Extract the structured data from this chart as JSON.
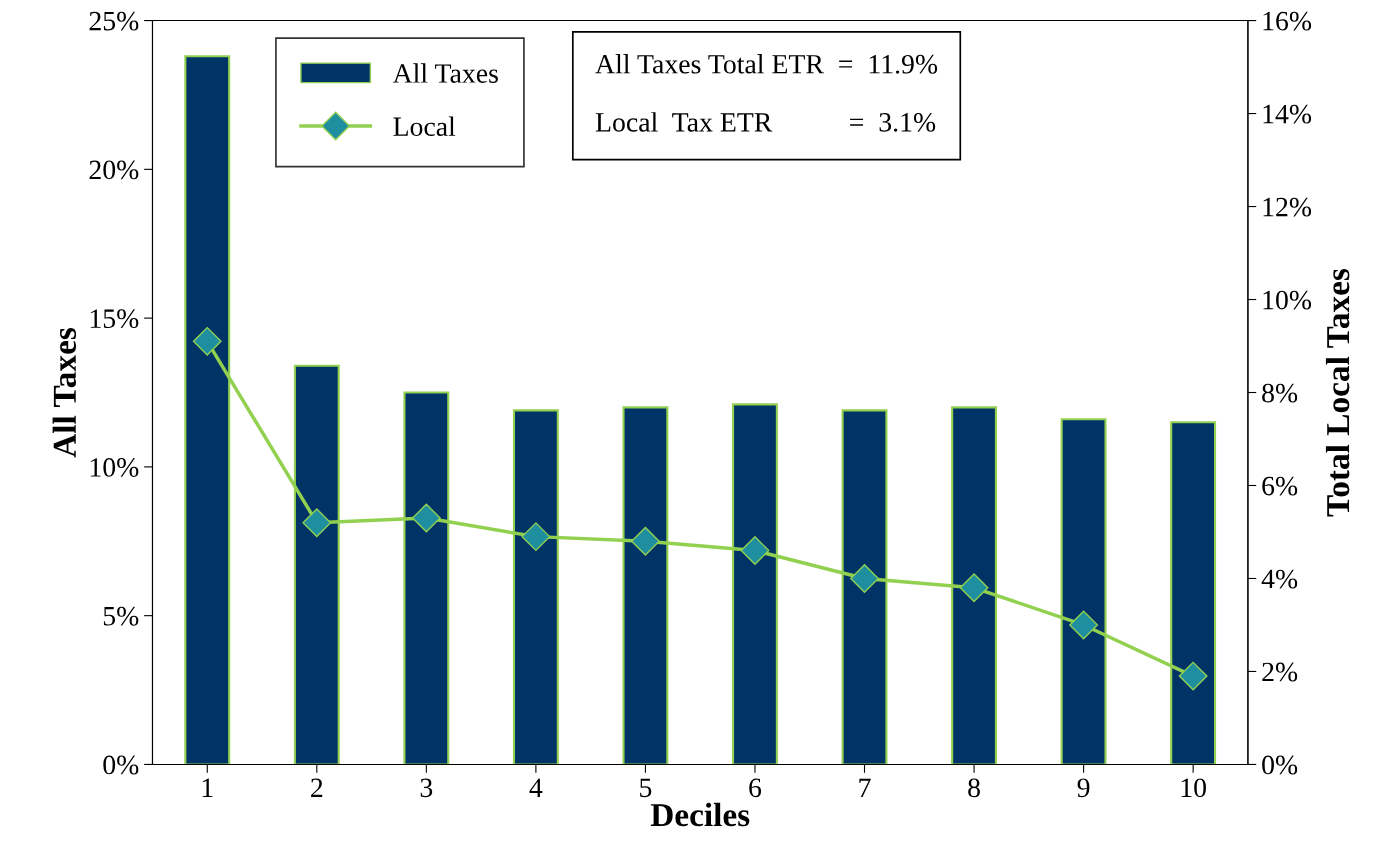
{
  "chart_data": {
    "type": "bar",
    "xlabel": "Deciles",
    "ylabel": "All Taxes",
    "y2label": "Total Local Taxes",
    "categories": [
      "1",
      "2",
      "3",
      "4",
      "5",
      "6",
      "7",
      "8",
      "9",
      "10"
    ],
    "series": [
      {
        "name": "All Taxes",
        "color": "#003366",
        "values": [
          23.8,
          13.4,
          12.5,
          11.9,
          12.0,
          12.1,
          11.9,
          12.0,
          11.6,
          11.5
        ]
      },
      {
        "name": "Local",
        "type": "line",
        "axis": "y2",
        "color": "#92d050",
        "marker": "diamond",
        "values": [
          9.1,
          5.2,
          5.3,
          4.9,
          4.8,
          4.6,
          4.0,
          3.8,
          3.0,
          1.9
        ]
      }
    ],
    "ylim": [
      0,
      25
    ],
    "yticks": [
      {
        "value": 0,
        "label": "0%"
      },
      {
        "value": 5,
        "label": "5%"
      },
      {
        "value": 10,
        "label": "10%"
      },
      {
        "value": 15,
        "label": "15%"
      },
      {
        "value": 20,
        "label": "20%"
      },
      {
        "value": 25,
        "label": "25%"
      }
    ],
    "y2lim": [
      0,
      16
    ],
    "y2ticks": [
      {
        "value": 0,
        "label": "0%"
      },
      {
        "value": 2,
        "label": "2%"
      },
      {
        "value": 4,
        "label": "4%"
      },
      {
        "value": 6,
        "label": "6%"
      },
      {
        "value": 8,
        "label": "8%"
      },
      {
        "value": 10,
        "label": "10%"
      },
      {
        "value": 12,
        "label": "12%"
      },
      {
        "value": 14,
        "label": "14%"
      },
      {
        "value": 16,
        "label": "16%"
      }
    ],
    "annotations": [
      "All Taxes Total ETR  =  11.9%",
      "Local  Tax ETR           =  3.1%"
    ],
    "legend": "top left",
    "grid": false
  }
}
